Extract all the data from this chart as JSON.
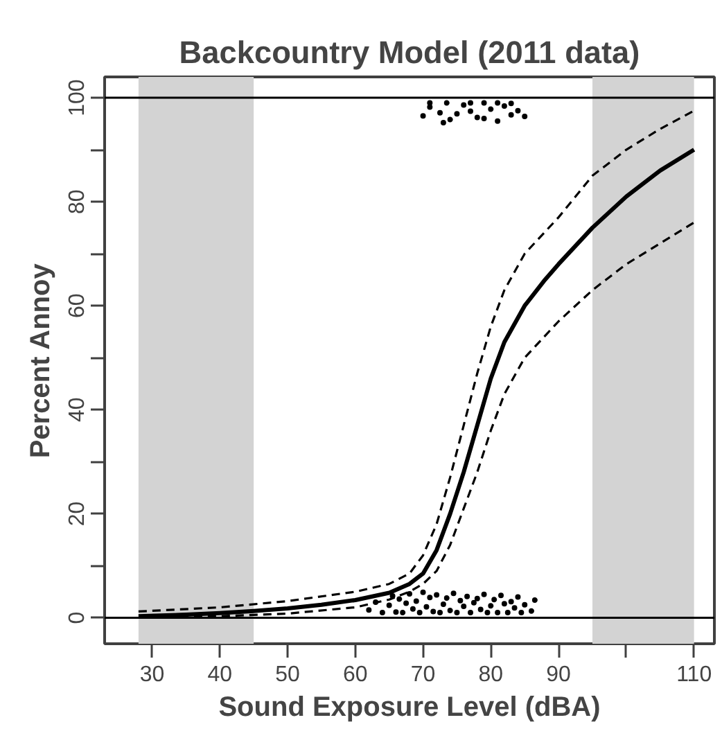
{
  "chart_data": {
    "type": "line",
    "title": "Backcountry Model (2011 data)",
    "xlabel": "Sound Exposure Level (dBA)",
    "ylabel": "Percent Annoy",
    "xlim": [
      23,
      113
    ],
    "ylim": [
      -5,
      104
    ],
    "xticks": [
      30,
      40,
      50,
      60,
      70,
      80,
      90,
      {
        "value": 100,
        "label": null
      },
      110
    ],
    "yticks": [
      0,
      {
        "value": 10,
        "label": null
      },
      20,
      {
        "value": 30,
        "label": null
      },
      40,
      {
        "value": 50,
        "label": null
      },
      60,
      {
        "value": 70,
        "label": null
      },
      80,
      {
        "value": 90,
        "label": null
      },
      100
    ],
    "grid": false,
    "bands": [
      {
        "axis": "x",
        "from": 28,
        "to": 45,
        "color": "#d3d3d3"
      },
      {
        "axis": "x",
        "from": 95,
        "to": 110,
        "color": "#d3d3d3"
      }
    ],
    "ref_lines": [
      {
        "axis": "y",
        "value": 0,
        "color": "#000000"
      },
      {
        "axis": "y",
        "value": 100,
        "color": "#000000"
      }
    ],
    "series": [
      {
        "color": "#000000",
        "line_style": "solid",
        "x": [
          28,
          35,
          40,
          45,
          50,
          55,
          60,
          65,
          68,
          70,
          72,
          74,
          76,
          78,
          80,
          82,
          85,
          88,
          90,
          95,
          100,
          105,
          110
        ],
        "values": [
          0.3,
          0.6,
          0.9,
          1.3,
          1.8,
          2.5,
          3.4,
          4.8,
          6.5,
          8.5,
          13,
          20,
          28,
          37,
          46,
          53,
          60,
          65,
          68,
          75,
          81,
          86,
          90
        ]
      },
      {
        "color": "#000000",
        "line_style": "dashed",
        "x": [
          28,
          40,
          50,
          60,
          65,
          68,
          70,
          72,
          74,
          76,
          78,
          80,
          82,
          85,
          90,
          95,
          100,
          105,
          110
        ],
        "values": [
          1.2,
          2,
          3.2,
          5,
          6.5,
          8.5,
          12,
          18,
          27,
          37,
          47,
          56,
          63,
          70,
          77,
          85,
          90,
          94,
          97.5
        ]
      },
      {
        "color": "#000000",
        "line_style": "dashed",
        "x": [
          28,
          40,
          50,
          60,
          65,
          68,
          70,
          72,
          74,
          76,
          78,
          80,
          82,
          85,
          90,
          95,
          100,
          105,
          110
        ],
        "values": [
          0,
          0.3,
          0.8,
          2,
          3.5,
          5,
          6.5,
          9,
          14,
          21,
          28,
          36,
          43,
          50,
          57,
          63,
          68,
          72,
          76
        ]
      },
      {
        "type": "scatter",
        "color": "#000000",
        "marker": "circle",
        "x": [
          62,
          63,
          64,
          65,
          65.5,
          66,
          66.5,
          67,
          67.5,
          68,
          68.5,
          69,
          69.5,
          70,
          70.5,
          71,
          71.5,
          72,
          72.5,
          73,
          73.5,
          74,
          74.5,
          75,
          75.5,
          76,
          76.5,
          77,
          77.5,
          78,
          78.5,
          79,
          79.5,
          80,
          80.5,
          81,
          81.5,
          82,
          82.5,
          83,
          83.5,
          84,
          84.5,
          85,
          86,
          86.5,
          70,
          71,
          72.5,
          73.5,
          74,
          75,
          76,
          77,
          78,
          79,
          80,
          81,
          82,
          83,
          84,
          71,
          73,
          77,
          79,
          81,
          83,
          85
        ],
        "values": [
          1.5,
          3,
          1,
          2.4,
          4.2,
          1.1,
          3.6,
          1,
          2.8,
          4.6,
          1.7,
          3.2,
          1,
          4.9,
          2.1,
          3.9,
          1.2,
          4.4,
          1,
          2.6,
          3.8,
          1.4,
          4.7,
          1,
          3.3,
          2.2,
          4.1,
          1,
          2.9,
          3.7,
          1.6,
          4.5,
          1,
          2.3,
          3.5,
          1,
          4.3,
          2.7,
          1,
          3.1,
          1.9,
          4,
          1,
          2.5,
          1.3,
          3.4,
          96.5,
          98.2,
          97.1,
          99,
          95.8,
          96.9,
          98.6,
          97.4,
          96.2,
          99,
          97.8,
          95.5,
          98.4,
          96.7,
          97.5,
          99,
          95.2,
          99,
          96,
          99,
          98.9,
          96.4
        ]
      }
    ]
  }
}
